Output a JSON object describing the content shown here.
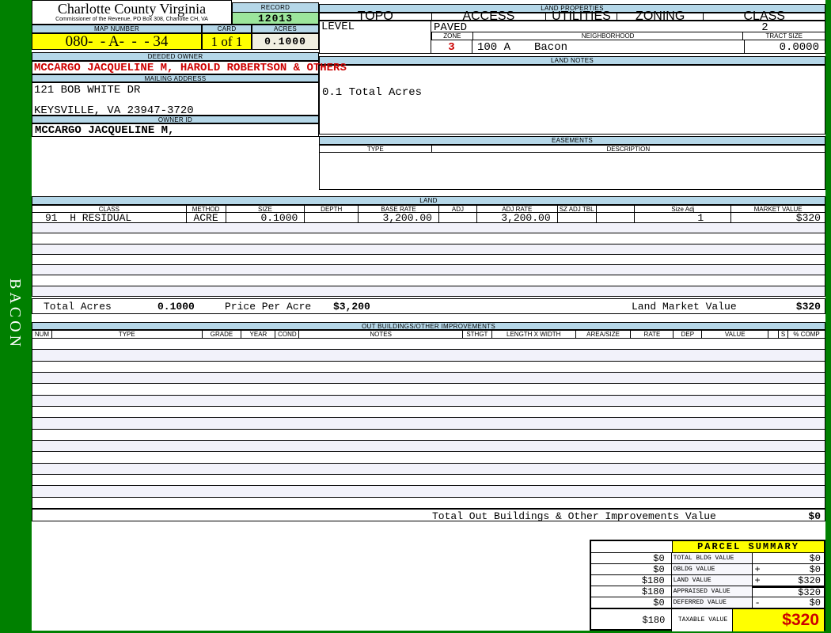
{
  "header": {
    "county_title": "Charlotte County Virginia",
    "county_subtitle": "Commissioner of the Revenue, PO Box 308, Charlotte CH, VA",
    "record_label": "RECORD",
    "record_value": "12013",
    "map_label": "MAP NUMBER",
    "map_value": "080-  - A-  -  - 34",
    "card_label": "CARD",
    "card_value": "1 of 1",
    "acres_label": "ACRES",
    "acres_value": "0.1000"
  },
  "owner": {
    "deeded_label": "DEEDED OWNER",
    "deeded_value": "MCCARGO JACQUELINE M, HAROLD ROBERTSON & OTHERS",
    "mailing_label": "MAILING ADDRESS",
    "mailing_line1": "121 BOB WHITE DR",
    "mailing_line2": "KEYSVILLE, VA 23947-3720",
    "owner_id_label": "OWNER ID",
    "owner_id_value": "MCCARGO JACQUELINE M,"
  },
  "land_properties": {
    "title": "LAND PROPERTIES",
    "headers": [
      "TOPO",
      "ACCESS",
      "UTILITIES",
      "ZONING",
      "CLASS"
    ],
    "topo_value": "LEVEL",
    "access_value": "PAVED",
    "class_value": "2",
    "zone_label": "ZONE",
    "zone_value": "3",
    "neighborhood_label": "NEIGHBORHOOD",
    "neighborhood_code": "100 A",
    "neighborhood_name": "Bacon",
    "tract_label": "TRACT SIZE",
    "tract_value": "0.0000"
  },
  "land_notes": {
    "title": "LAND NOTES",
    "text": "0.1 Total Acres"
  },
  "easements": {
    "title": "EASEMENTS",
    "type_label": "TYPE",
    "description_label": "DESCRIPTION"
  },
  "land_table": {
    "title": "LAND",
    "headers": [
      "CLASS",
      "METHOD",
      "SIZE",
      "DEPTH",
      "BASE RATE",
      "ADJ",
      "ADJ RATE",
      "SZ ADJ TBL",
      "",
      "Size Adj",
      "MARKET VALUE"
    ],
    "row": [
      "91  H RESIDUAL",
      "ACRE",
      "0.1000",
      "",
      "3,200.00",
      "",
      "3,200.00",
      "",
      "",
      "1",
      "$320"
    ],
    "totals": {
      "acres_label": "Total Acres",
      "acres_value": "0.1000",
      "price_label": "Price Per Acre",
      "price_value": "$3,200",
      "market_label": "Land Market Value",
      "market_value": "$320"
    }
  },
  "out_buildings": {
    "title": "OUT BUILDINGS/OTHER IMPROVEMENTS",
    "headers": [
      "NUM",
      "TYPE",
      "GRADE",
      "YEAR",
      "COND",
      "NOTES",
      "STHGT",
      "LENGTH X WIDTH",
      "AREA/SIZE",
      "RATE",
      "DEP",
      "VALUE",
      "",
      "S",
      "% COMP"
    ],
    "total_label": "Total Out Buildings & Other Improvements Value",
    "total_value": "$0"
  },
  "parcel_summary": {
    "title": "PARCEL SUMMARY",
    "rows": [
      {
        "left": "$0",
        "label": "TOTAL BLDG VALUE",
        "op": "",
        "right": "$0"
      },
      {
        "left": "$0",
        "label": "OBLDG VALUE",
        "op": "+",
        "right": "$0"
      },
      {
        "left": "$180",
        "label": "LAND VALUE",
        "op": "+",
        "right": "$320"
      },
      {
        "left": "$180",
        "label": "APPRAISED VALUE",
        "op": "",
        "right": "$320"
      },
      {
        "left": "$0",
        "label": "DEFERRED VALUE",
        "op": "-",
        "right": "$0"
      }
    ],
    "taxable": {
      "left": "$180",
      "label": "TAXABLE VALUE",
      "value": "$320"
    }
  },
  "sidebar": {
    "vertical_label": "BACON"
  }
}
